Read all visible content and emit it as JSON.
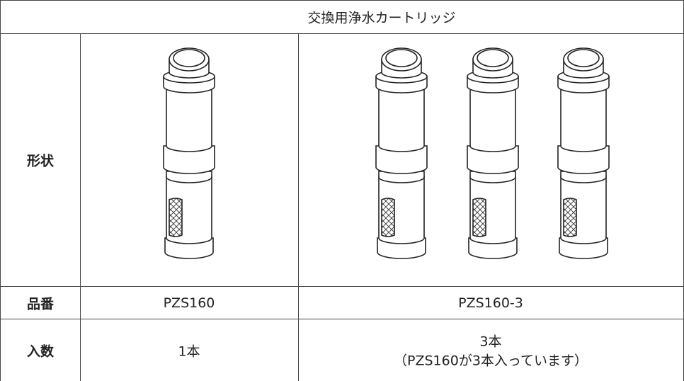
{
  "header": {
    "title": "交換用浄水カートリッジ"
  },
  "table": {
    "rows": [
      {
        "label": "形状"
      },
      {
        "label": "品番",
        "cells": [
          "PZS160",
          "PZS160-3"
        ]
      },
      {
        "label": "入数",
        "cells": [
          [
            "1本"
          ],
          [
            "3本",
            "（PZS160が3本入っています）"
          ]
        ]
      }
    ]
  }
}
